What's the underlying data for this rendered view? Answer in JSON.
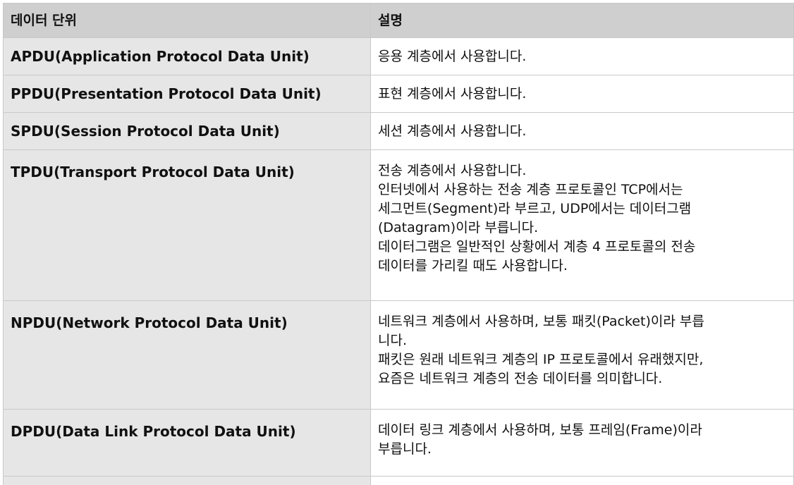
{
  "table": {
    "headers": [
      "데이터 단위",
      "설명"
    ],
    "rows": [
      {
        "unit": "APDU(Application Protocol Data Unit)",
        "lines": [
          "응용 계층에서 사용합니다."
        ]
      },
      {
        "unit": "PPDU(Presentation Protocol Data Unit)",
        "lines": [
          "표현 계층에서 사용합니다."
        ]
      },
      {
        "unit": "SPDU(Session Protocol Data Unit)",
        "lines": [
          "세션 계층에서 사용합니다."
        ]
      },
      {
        "unit": "TPDU(Transport Protocol Data Unit)",
        "lines": [
          "전송 계층에서 사용합니다.",
          "인터넷에서 사용하는 전송 계층 프로토콜인 TCP에서는",
          "세그먼트(Segment)라 부르고, UDP에서는 데이터그램",
          "(Datagram)이라 부릅니다.",
          "데이터그램은 일반적인 상황에서 계층 4 프로토콜의 전송",
          "데이터를 가리킬 때도 사용합니다."
        ]
      },
      {
        "unit": "NPDU(Network Protocol Data Unit)",
        "lines": [
          "네트워크 계층에서 사용하며, 보통 패킷(Packet)이라 부릅",
          "니다.",
          "패킷은 원래 네트워크 계층의 IP 프로토콜에서 유래했지만,",
          "요즘은 네트워크 계층의 전송 데이터를 의미합니다."
        ]
      },
      {
        "unit": "DPDU(Data Link Protocol Data Unit)",
        "lines": [
          "데이터 링크 계층에서 사용하며, 보통 프레임(Frame)이라",
          "부릅니다."
        ]
      }
    ]
  }
}
